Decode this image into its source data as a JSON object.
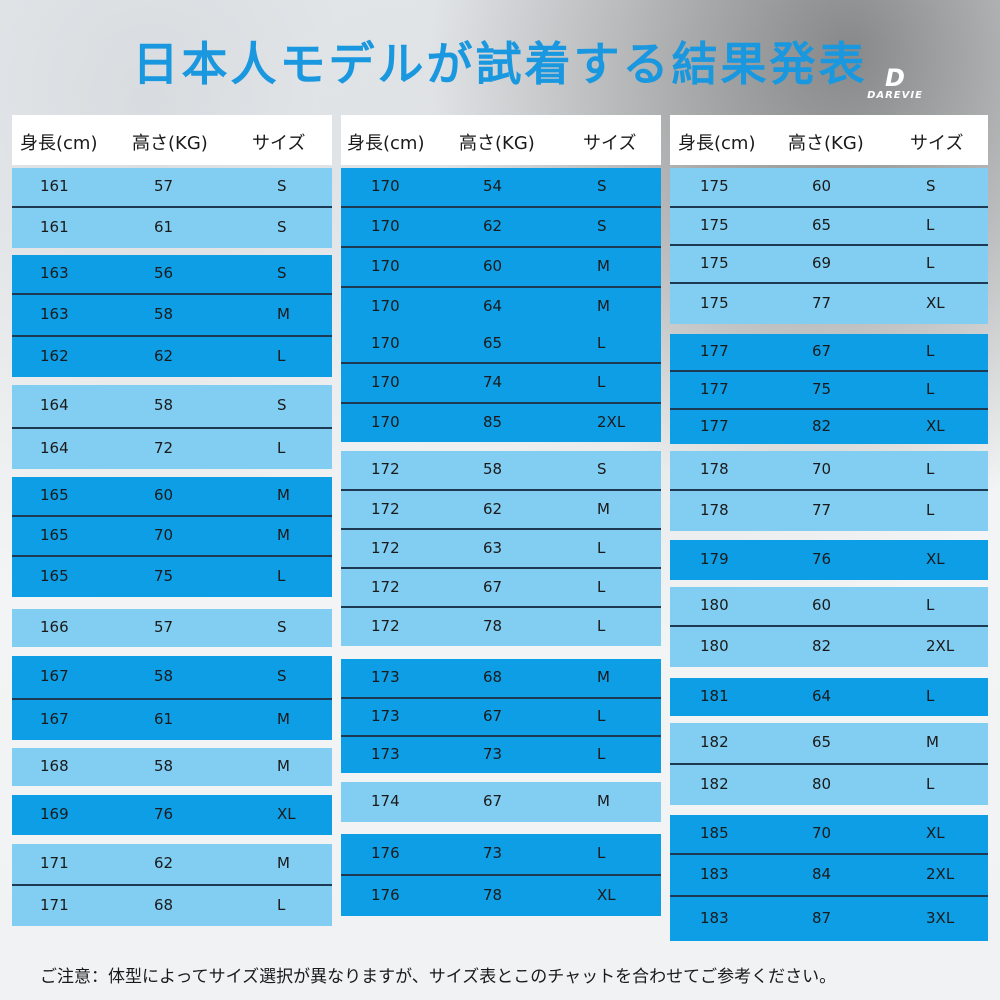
{
  "title": "日本人モデルが試着する結果発表",
  "logo": {
    "mark": "D",
    "text": "DAREVIE"
  },
  "headers": {
    "height": "身長(cm)",
    "weight": "高さ(KG)",
    "size": "サイズ"
  },
  "columns": [
    {
      "rows": [
        {
          "h": "161",
          "w": "57",
          "s": "S"
        },
        {
          "h": "161",
          "w": "61",
          "s": "S"
        },
        {
          "h": "163",
          "w": "56",
          "s": "S"
        },
        {
          "h": "163",
          "w": "58",
          "s": "M"
        },
        {
          "h": "162",
          "w": "62",
          "s": "L"
        },
        {
          "h": "164",
          "w": "58",
          "s": "S"
        },
        {
          "h": "164",
          "w": "72",
          "s": "L"
        },
        {
          "h": "165",
          "w": "60",
          "s": "M"
        },
        {
          "h": "165",
          "w": "70",
          "s": "M"
        },
        {
          "h": "165",
          "w": "75",
          "s": "L"
        },
        {
          "h": "166",
          "w": "57",
          "s": "S"
        },
        {
          "h": "167",
          "w": "58",
          "s": "S"
        },
        {
          "h": "167",
          "w": "61",
          "s": "M"
        },
        {
          "h": "168",
          "w": "58",
          "s": "M"
        },
        {
          "h": "169",
          "w": "76",
          "s": "XL"
        },
        {
          "h": "171",
          "w": "62",
          "s": "M"
        },
        {
          "h": "171",
          "w": "68",
          "s": "L"
        }
      ]
    },
    {
      "rows": [
        {
          "h": "170",
          "w": "54",
          "s": "S"
        },
        {
          "h": "170",
          "w": "62",
          "s": "S"
        },
        {
          "h": "170",
          "w": "60",
          "s": "M"
        },
        {
          "h": "170",
          "w": "64",
          "s": "M"
        },
        {
          "h": "170",
          "w": "65",
          "s": "L"
        },
        {
          "h": "170",
          "w": "74",
          "s": "L"
        },
        {
          "h": "170",
          "w": "85",
          "s": "2XL"
        },
        {
          "h": "172",
          "w": "58",
          "s": "S"
        },
        {
          "h": "172",
          "w": "62",
          "s": "M"
        },
        {
          "h": "172",
          "w": "63",
          "s": "L"
        },
        {
          "h": "172",
          "w": "67",
          "s": "L"
        },
        {
          "h": "172",
          "w": "78",
          "s": "L"
        },
        {
          "h": "173",
          "w": "68",
          "s": "M"
        },
        {
          "h": "173",
          "w": "67",
          "s": "L"
        },
        {
          "h": "173",
          "w": "73",
          "s": "L"
        },
        {
          "h": "174",
          "w": "67",
          "s": "M"
        },
        {
          "h": "176",
          "w": "73",
          "s": "L"
        },
        {
          "h": "176",
          "w": "78",
          "s": "XL"
        }
      ]
    },
    {
      "rows": [
        {
          "h": "175",
          "w": "60",
          "s": "S"
        },
        {
          "h": "175",
          "w": "65",
          "s": "L"
        },
        {
          "h": "175",
          "w": "69",
          "s": "L"
        },
        {
          "h": "175",
          "w": "77",
          "s": "XL"
        },
        {
          "h": "177",
          "w": "67",
          "s": "L"
        },
        {
          "h": "177",
          "w": "75",
          "s": "L"
        },
        {
          "h": "177",
          "w": "82",
          "s": "XL"
        },
        {
          "h": "178",
          "w": "70",
          "s": "L"
        },
        {
          "h": "178",
          "w": "77",
          "s": "L"
        },
        {
          "h": "179",
          "w": "76",
          "s": "XL"
        },
        {
          "h": "180",
          "w": "60",
          "s": "L"
        },
        {
          "h": "180",
          "w": "82",
          "s": "2XL"
        },
        {
          "h": "181",
          "w": "64",
          "s": "L"
        },
        {
          "h": "182",
          "w": "65",
          "s": "M"
        },
        {
          "h": "182",
          "w": "80",
          "s": "L"
        },
        {
          "h": "185",
          "w": "70",
          "s": "XL"
        },
        {
          "h": "183",
          "w": "84",
          "s": "2XL"
        },
        {
          "h": "183",
          "w": "87",
          "s": "3XL"
        }
      ]
    }
  ],
  "note": "ご注意：体型によってサイズ選択が異なりますが、サイズ表とこのチャットを合わせてご参考ください。",
  "colors": {
    "title": "#1a98df",
    "light_row": "#82cdf2",
    "dark_row": "#0d9ee6"
  }
}
